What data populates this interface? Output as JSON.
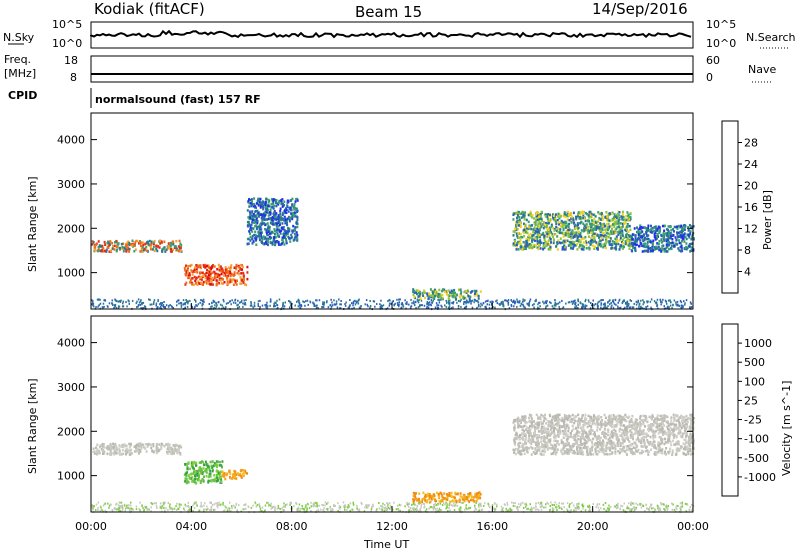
{
  "header": {
    "station": "Kodiak (fitACF)",
    "beam": "Beam 15",
    "date": "14/Sep/2016"
  },
  "strip_panels": {
    "nsky": {
      "left_label": "N.Sky",
      "right_label": "N.Search",
      "left_ticks": [
        "10^5",
        "10^0"
      ],
      "right_ticks": [
        "10^5",
        "10^0"
      ]
    },
    "freq": {
      "left_label_lines": [
        "Freq.",
        "[MHz]"
      ],
      "right_label": "Nave",
      "left_ticks": [
        "18",
        "8"
      ],
      "right_ticks": [
        "60",
        "0"
      ]
    },
    "cpid": {
      "label": "CPID",
      "text": "normalsound (fast) 157 RF"
    }
  },
  "chart_data": [
    {
      "type": "heatmap",
      "name": "power",
      "ylabel": "Slant Range [km]",
      "ylim": [
        180,
        4600
      ],
      "yticks": [
        1000,
        2000,
        3000,
        4000
      ],
      "xlim": [
        0,
        24
      ],
      "colorbar_label": "Power [dB]",
      "colorbar_ticks": [
        "4",
        "8",
        "12",
        "16",
        "20",
        "24",
        "28"
      ],
      "colorbar_colors": [
        "#2030e8",
        "#2a5dc0",
        "#2a7a8c",
        "#3aa070",
        "#8cc43c",
        "#f0d020",
        "#f5a030",
        "#f06a20",
        "#e82a1a",
        "#e01010"
      ],
      "regions": [
        {
          "t0": 0.0,
          "t1": 3.6,
          "r0": 1500,
          "r1": 1750,
          "level": "high"
        },
        {
          "t0": 3.7,
          "t1": 6.2,
          "r0": 750,
          "r1": 1200,
          "level": "very_high"
        },
        {
          "t0": 6.2,
          "t1": 8.2,
          "r0": 1650,
          "r1": 2700,
          "level": "low"
        },
        {
          "t0": 12.8,
          "t1": 15.5,
          "r0": 430,
          "r1": 650,
          "level": "medium"
        },
        {
          "t0": 16.8,
          "t1": 21.5,
          "r0": 1550,
          "r1": 2400,
          "level": "medium"
        },
        {
          "t0": 21.5,
          "t1": 24.0,
          "r0": 1500,
          "r1": 2100,
          "level": "low"
        }
      ]
    },
    {
      "type": "heatmap",
      "name": "velocity",
      "ylabel": "Slant Range [km]",
      "ylim": [
        180,
        4600
      ],
      "yticks": [
        1000,
        2000,
        3000,
        4000
      ],
      "xlim": [
        0,
        24
      ],
      "xticks": [
        "00:00",
        "04:00",
        "08:00",
        "12:00",
        "16:00",
        "20:00",
        "00:00"
      ],
      "xlabel": "Time UT",
      "colorbar_label": "Velocity [m s^-1]",
      "colorbar_ticks": [
        "1000",
        "500",
        "100",
        "25",
        "-25",
        "-100",
        "-500",
        "-1000"
      ],
      "colorbar_colors": [
        "#1838c8",
        "#2858b8",
        "#38a048",
        "#7cd040",
        "#c8c8c0",
        "#f5c020",
        "#f08a10",
        "#f05010",
        "#e81010"
      ],
      "regions": [
        {
          "t0": 0.0,
          "t1": 3.6,
          "r0": 1500,
          "r1": 1750,
          "level": "near_zero"
        },
        {
          "t0": 3.7,
          "t1": 5.2,
          "r0": 850,
          "r1": 1350,
          "level": "positive_100"
        },
        {
          "t0": 5.2,
          "t1": 6.2,
          "r0": 950,
          "r1": 1150,
          "level": "negative_500"
        },
        {
          "t0": 12.8,
          "t1": 15.5,
          "r0": 430,
          "r1": 650,
          "level": "negative_100"
        },
        {
          "t0": 16.8,
          "t1": 24.0,
          "r0": 1500,
          "r1": 2400,
          "level": "near_zero"
        }
      ]
    }
  ]
}
